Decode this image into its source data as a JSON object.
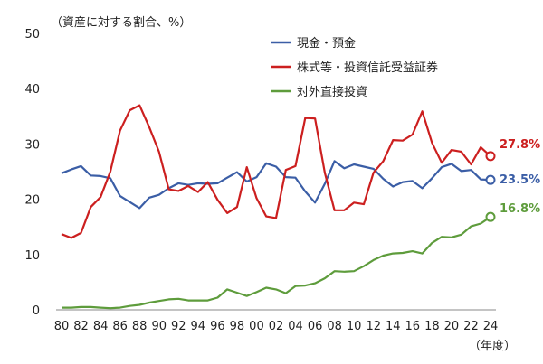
{
  "chart_data": {
    "type": "line",
    "ylabel": "（資産に対する割合、%）",
    "xlabel": "（年度）",
    "ylim": [
      0,
      50
    ],
    "yticks": [
      0,
      10,
      20,
      30,
      40,
      50
    ],
    "x": [
      80,
      81,
      82,
      83,
      84,
      85,
      86,
      87,
      88,
      89,
      90,
      91,
      92,
      93,
      94,
      95,
      96,
      97,
      98,
      99,
      0,
      1,
      2,
      3,
      4,
      5,
      6,
      7,
      8,
      9,
      10,
      11,
      12,
      13,
      14,
      15,
      16,
      17,
      18,
      19,
      20,
      21,
      22,
      23,
      24
    ],
    "xticklabels": [
      "80",
      "82",
      "84",
      "86",
      "88",
      "90",
      "92",
      "94",
      "96",
      "98",
      "00",
      "02",
      "04",
      "06",
      "08",
      "10",
      "12",
      "14",
      "16",
      "18",
      "20",
      "22",
      "24"
    ],
    "legend_position": "top-center",
    "series": [
      {
        "name": "現金・預金",
        "color": "#3b5ea6",
        "values": [
          24.7,
          25.4,
          26.0,
          24.3,
          24.2,
          23.8,
          20.6,
          19.5,
          18.4,
          20.3,
          20.8,
          22.0,
          22.9,
          22.6,
          22.9,
          22.8,
          22.9,
          23.9,
          24.9,
          23.2,
          24.0,
          26.5,
          25.9,
          24.0,
          23.9,
          21.4,
          19.4,
          22.8,
          26.9,
          25.6,
          26.3,
          25.9,
          25.5,
          23.7,
          22.3,
          23.1,
          23.3,
          22.0,
          23.8,
          25.8,
          26.4,
          25.1,
          25.3,
          23.6,
          23.5
        ],
        "end_label": "23.5%"
      },
      {
        "name": "株式等・投資信託受益証券",
        "color": "#cc1f1f",
        "values": [
          13.7,
          13.0,
          13.9,
          18.6,
          20.4,
          25.0,
          32.4,
          36.1,
          37.0,
          33.0,
          28.6,
          21.8,
          21.5,
          22.4,
          21.3,
          23.1,
          19.9,
          17.5,
          18.6,
          25.8,
          20.2,
          16.9,
          16.6,
          25.3,
          26.0,
          34.7,
          34.6,
          24.8,
          18.0,
          18.0,
          19.4,
          19.1,
          24.8,
          26.9,
          30.7,
          30.6,
          31.7,
          35.9,
          30.2,
          26.6,
          28.9,
          28.6,
          26.3,
          29.4,
          27.8
        ],
        "end_label": "27.8%"
      },
      {
        "name": "対外直接投資",
        "color": "#5e9c3c",
        "values": [
          0.4,
          0.4,
          0.5,
          0.5,
          0.4,
          0.3,
          0.4,
          0.7,
          0.9,
          1.3,
          1.6,
          1.9,
          2.0,
          1.7,
          1.7,
          1.7,
          2.2,
          3.7,
          3.1,
          2.5,
          3.2,
          4.0,
          3.7,
          3.0,
          4.3,
          4.4,
          4.8,
          5.7,
          7.0,
          6.9,
          7.0,
          7.9,
          9.0,
          9.8,
          10.2,
          10.3,
          10.6,
          10.2,
          12.1,
          13.2,
          13.1,
          13.6,
          15.1,
          15.6,
          16.8
        ],
        "end_label": "16.8%"
      }
    ]
  }
}
